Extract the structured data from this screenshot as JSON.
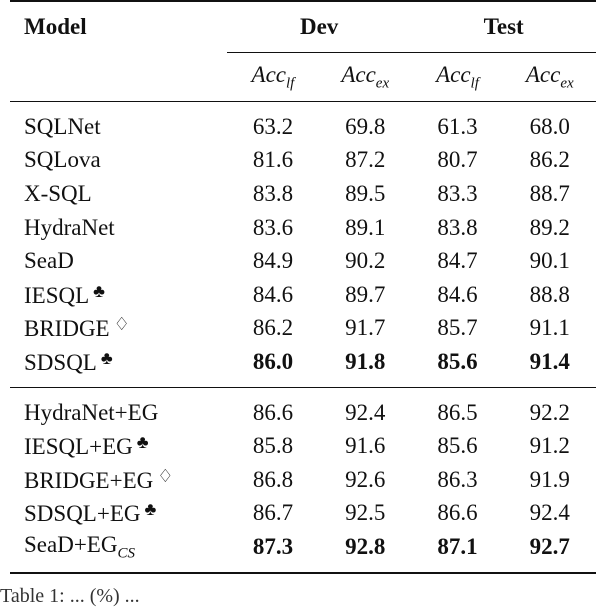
{
  "header": {
    "model_label": "Model",
    "groups": [
      "Dev",
      "Test"
    ],
    "metrics": [
      {
        "base": "Acc",
        "sub": "lf"
      },
      {
        "base": "Acc",
        "sub": "ex"
      },
      {
        "base": "Acc",
        "sub": "lf"
      },
      {
        "base": "Acc",
        "sub": "ex"
      }
    ]
  },
  "section1": [
    {
      "model": "SQLNet",
      "mark": "",
      "values": [
        "63.2",
        "69.8",
        "61.3",
        "68.0"
      ],
      "bold": false
    },
    {
      "model": "SQLova",
      "mark": "",
      "values": [
        "81.6",
        "87.2",
        "80.7",
        "86.2"
      ],
      "bold": false
    },
    {
      "model": "X-SQL",
      "mark": "",
      "values": [
        "83.8",
        "89.5",
        "83.3",
        "88.7"
      ],
      "bold": false
    },
    {
      "model": "HydraNet",
      "mark": "",
      "values": [
        "83.6",
        "89.1",
        "83.8",
        "89.2"
      ],
      "bold": false
    },
    {
      "model": "SeaD",
      "mark": "",
      "values": [
        "84.9",
        "90.2",
        "84.7",
        "90.1"
      ],
      "bold": false
    },
    {
      "model": "IESQL",
      "mark": "♣",
      "values": [
        "84.6",
        "89.7",
        "84.6",
        "88.8"
      ],
      "bold": false
    },
    {
      "model": "BRIDGE",
      "mark": "♢",
      "values": [
        "86.2",
        "91.7",
        "85.7",
        "91.1"
      ],
      "bold": false
    },
    {
      "model": "SDSQL",
      "mark": "♣",
      "values": [
        "86.0",
        "91.8",
        "85.6",
        "91.4"
      ],
      "bold": true
    }
  ],
  "section2": [
    {
      "model": "HydraNet+EG",
      "mark": "",
      "values": [
        "86.6",
        "92.4",
        "86.5",
        "92.2"
      ],
      "bold": false
    },
    {
      "model": "IESQL+EG",
      "mark": "♣",
      "values": [
        "85.8",
        "91.6",
        "85.6",
        "91.2"
      ],
      "bold": false
    },
    {
      "model": "BRIDGE+EG",
      "mark": "♢",
      "values": [
        "86.8",
        "92.6",
        "86.3",
        "91.9"
      ],
      "bold": false
    },
    {
      "model": "SDSQL+EG",
      "mark": "♣",
      "values": [
        "86.7",
        "92.5",
        "86.6",
        "92.4"
      ],
      "bold": false
    },
    {
      "model": "SeaD+EG",
      "model_sub": "CS",
      "mark": "",
      "values": [
        "87.3",
        "92.8",
        "87.1",
        "92.7"
      ],
      "bold": true
    }
  ],
  "caption_fragment": "Table 1: ... (%) ..."
}
